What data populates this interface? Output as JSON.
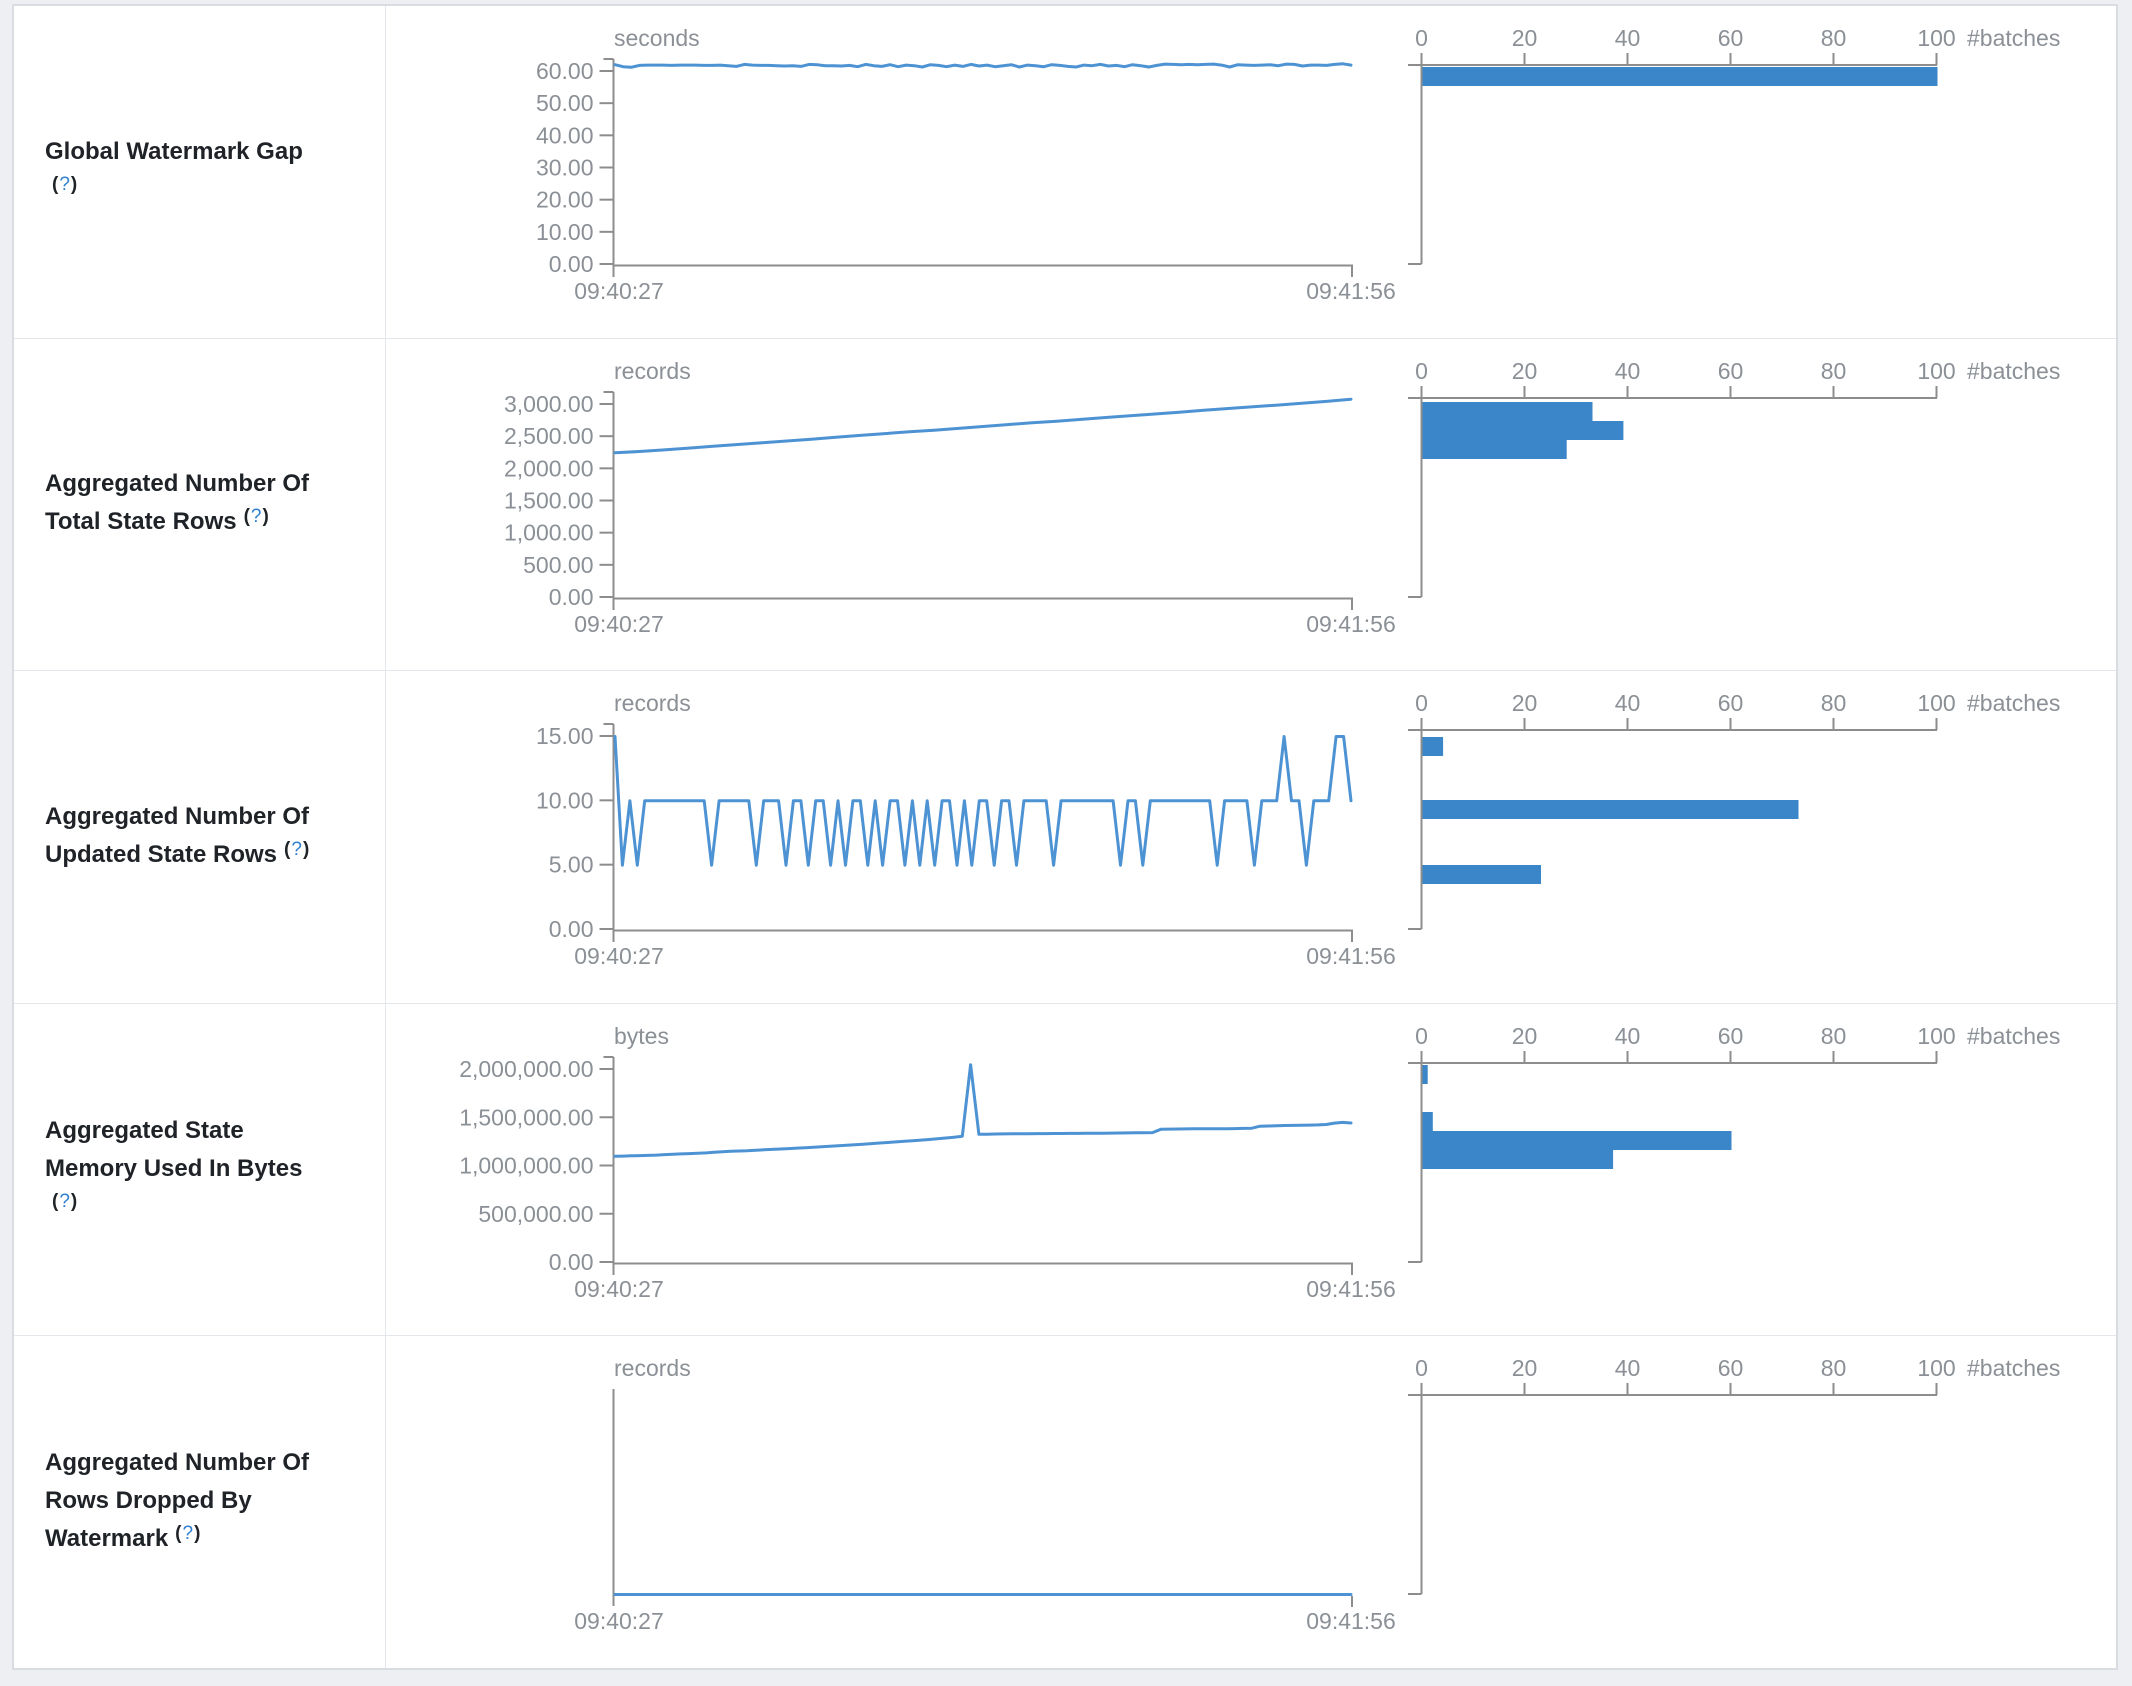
{
  "page": {
    "background": "#edeff3"
  },
  "help": {
    "open": "(",
    "q": "?",
    "close": ")"
  },
  "colors": {
    "bar_fill": "#3a86c8",
    "line_stroke": "#4d93d3",
    "axis": "#8d8d8d",
    "tick_text": "#8b9096",
    "label_text": "#1f2328",
    "help_question": "#2f7fd0",
    "row_border": "#e3e6ea",
    "outer_border": "#d9dde1"
  },
  "chart_data": [
    {
      "type": "line",
      "metric": "Global Watermark Gap",
      "unit": "seconds",
      "x": [
        "09:40:27",
        "09:41:56"
      ],
      "ylim": [
        0,
        60
      ],
      "note": "flat line slightly above 60 for all batches",
      "histogram": {
        "type": "bar",
        "xlabel": "#batches",
        "xlim": [
          0,
          100
        ],
        "counts": [
          100
        ]
      }
    },
    {
      "type": "line",
      "metric": "Aggregated Number Of Total State Rows",
      "unit": "records",
      "x": [
        "09:40:27",
        "09:41:56"
      ],
      "ylim": [
        0,
        3000
      ],
      "note": "rises ~2250 to ~3083",
      "histogram": {
        "type": "bar",
        "xlabel": "#batches",
        "xlim": [
          0,
          100
        ],
        "counts": [
          33,
          39,
          28
        ]
      }
    },
    {
      "type": "line",
      "metric": "Aggregated Number Of Updated State Rows",
      "unit": "records",
      "x": [
        "09:40:27",
        "09:41:56"
      ],
      "ylim": [
        0,
        15
      ],
      "note": "square wave between 15/10/5",
      "histogram": {
        "type": "bar",
        "xlabel": "#batches",
        "xlim": [
          0,
          100
        ],
        "counts": [
          4,
          73,
          23
        ]
      }
    },
    {
      "type": "line",
      "metric": "Aggregated State Memory Used In Bytes",
      "unit": "bytes",
      "x": [
        "09:40:27",
        "09:41:56"
      ],
      "ylim": [
        0,
        2000000
      ],
      "note": "rises ~1.1M to ~1.45M with one spike to ~2.05M",
      "histogram": {
        "type": "bar",
        "xlabel": "#batches",
        "xlim": [
          0,
          100
        ],
        "counts": [
          1,
          2,
          60,
          37
        ]
      }
    },
    {
      "type": "line",
      "metric": "Aggregated Number Of Rows Dropped By Watermark",
      "unit": "records",
      "x": [
        "09:40:27",
        "09:41:56"
      ],
      "ylim": [
        0,
        0
      ],
      "note": "flat at 0, empty histogram",
      "histogram": {
        "type": "bar",
        "xlabel": "#batches",
        "xlim": [
          0,
          100
        ],
        "counts": []
      }
    }
  ],
  "table": {
    "rows": [
      {
        "label_lines": [
          "Global Watermark Gap"
        ],
        "help_own_line": true,
        "timeline": {
          "unit": "seconds",
          "y_ticks": [
            "60.00",
            "50.00",
            "40.00",
            "30.00",
            "20.00",
            "10.00",
            "0.00"
          ],
          "y_max": 60,
          "x_start": "09:40:27",
          "x_end": "09:41:56",
          "values": [
            62.1,
            61.5,
            61.3,
            61.9,
            62.0,
            62.0,
            62.0,
            61.9,
            62.0,
            62.0,
            62.0,
            61.9,
            61.9,
            62.0,
            61.8,
            61.6,
            62.2,
            62.0,
            61.9,
            61.9,
            61.8,
            61.7,
            61.8,
            61.6,
            62.2,
            62.1,
            61.8,
            61.8,
            61.7,
            61.9,
            61.5,
            62.2,
            61.8,
            61.6,
            62.1,
            61.5,
            62.0,
            61.8,
            61.4,
            62.1,
            61.9,
            61.5,
            62.0,
            61.6,
            62.2,
            61.7,
            62.0,
            61.5,
            61.8,
            62.1,
            61.4,
            62.0,
            61.8,
            61.5,
            62.1,
            61.9,
            61.6,
            61.4,
            62.0,
            61.8,
            62.2,
            61.7,
            61.9,
            61.5,
            62.1,
            61.8,
            61.4,
            61.9,
            62.3,
            62.2,
            62.1,
            62.2,
            62.1,
            62.2,
            62.3,
            62.0,
            61.4,
            62.1,
            62.0,
            61.9,
            62.0,
            62.1,
            61.8,
            62.3,
            62.2,
            61.7,
            62.0,
            62.0,
            61.9,
            62.2,
            62.4,
            62.0
          ]
        },
        "histogram": {
          "x_ticks": [
            "0",
            "20",
            "40",
            "60",
            "80",
            "100"
          ],
          "axis_label": "#batches",
          "bars": [
            {
              "count": 100,
              "y_offset": 2
            }
          ]
        }
      },
      {
        "label_lines": [
          "Aggregated Number Of",
          "Total State Rows"
        ],
        "help_own_line": false,
        "timeline": {
          "unit": "records",
          "y_ticks": [
            "3,000.00",
            "2,500.00",
            "2,000.00",
            "1,500.00",
            "1,000.00",
            "500.00",
            "0.00"
          ],
          "y_max": 3000,
          "x_start": "09:40:27",
          "x_end": "09:41:56",
          "values": [
            2250,
            2270,
            2295,
            2322,
            2350,
            2378,
            2405,
            2432,
            2460,
            2490,
            2520,
            2548,
            2575,
            2600,
            2628,
            2658,
            2688,
            2715,
            2740,
            2768,
            2798,
            2825,
            2852,
            2880,
            2910,
            2938,
            2965,
            2990,
            3018,
            3048,
            3083
          ]
        },
        "histogram": {
          "x_ticks": [
            "0",
            "20",
            "40",
            "60",
            "80",
            "100"
          ],
          "axis_label": "#batches",
          "bars": [
            {
              "count": 33,
              "y_offset": 4
            },
            {
              "count": 39,
              "y_offset": 23
            },
            {
              "count": 28,
              "y_offset": 42
            }
          ]
        }
      },
      {
        "label_lines": [
          "Aggregated Number Of",
          "Updated State Rows"
        ],
        "help_own_line": false,
        "timeline": {
          "unit": "records",
          "y_ticks": [
            "15.00",
            "10.00",
            "5.00",
            "0.00"
          ],
          "y_max": 15,
          "x_start": "09:40:27",
          "x_end": "09:41:56",
          "values": [
            15,
            5,
            10,
            5,
            10,
            10,
            10,
            10,
            10,
            10,
            10,
            10,
            10,
            5,
            10,
            10,
            10,
            10,
            10,
            5,
            10,
            10,
            10,
            5,
            10,
            10,
            5,
            10,
            10,
            5,
            10,
            5,
            10,
            10,
            5,
            10,
            5,
            10,
            10,
            5,
            10,
            5,
            10,
            5,
            10,
            10,
            5,
            10,
            5,
            10,
            10,
            5,
            10,
            10,
            5,
            10,
            10,
            10,
            10,
            5,
            10,
            10,
            10,
            10,
            10,
            10,
            10,
            10,
            5,
            10,
            10,
            5,
            10,
            10,
            10,
            10,
            10,
            10,
            10,
            10,
            10,
            5,
            10,
            10,
            10,
            10,
            5,
            10,
            10,
            10,
            15,
            10,
            10,
            5,
            10,
            10,
            10,
            15,
            15,
            10
          ]
        },
        "histogram": {
          "x_ticks": [
            "0",
            "20",
            "40",
            "60",
            "80",
            "100"
          ],
          "axis_label": "#batches",
          "bars": [
            {
              "count": 4,
              "y_offset": 7
            },
            {
              "count": 73,
              "y_offset": 70
            },
            {
              "count": 23,
              "y_offset": 135
            }
          ]
        }
      },
      {
        "label_lines": [
          "Aggregated State",
          "Memory Used In Bytes"
        ],
        "help_own_line": true,
        "timeline": {
          "unit": "bytes",
          "y_ticks": [
            "2,000,000.00",
            "1,500,000.00",
            "1,000,000.00",
            "500,000.00",
            "0.00"
          ],
          "y_max": 2000000,
          "x_start": "09:40:27",
          "x_end": "09:41:56",
          "values": [
            1100000,
            1103000,
            1106000,
            1108000,
            1110000,
            1113000,
            1118000,
            1122000,
            1125000,
            1128000,
            1132000,
            1136000,
            1142000,
            1148000,
            1152000,
            1155000,
            1158000,
            1163000,
            1168000,
            1172000,
            1176000,
            1180000,
            1185000,
            1190000,
            1195000,
            1200000,
            1205000,
            1210000,
            1215000,
            1220000,
            1226000,
            1232000,
            1238000,
            1244000,
            1250000,
            1256000,
            1262000,
            1268000,
            1275000,
            1282000,
            1290000,
            1298000,
            1308000,
            2050000,
            1328000,
            1330000,
            1332000,
            1333000,
            1334000,
            1335000,
            1335000,
            1336000,
            1336000,
            1337000,
            1337000,
            1338000,
            1338000,
            1339000,
            1340000,
            1340000,
            1341000,
            1342000,
            1343000,
            1344000,
            1345000,
            1346000,
            1380000,
            1382000,
            1383000,
            1384000,
            1385000,
            1385000,
            1386000,
            1386000,
            1387000,
            1388000,
            1390000,
            1392000,
            1412000,
            1415000,
            1418000,
            1420000,
            1421000,
            1422000,
            1424000,
            1426000,
            1430000,
            1445000,
            1452000,
            1446000
          ]
        },
        "histogram": {
          "x_ticks": [
            "0",
            "20",
            "40",
            "60",
            "80",
            "100"
          ],
          "axis_label": "#batches",
          "bars": [
            {
              "count": 1,
              "y_offset": 2
            },
            {
              "count": 2,
              "y_offset": 49
            },
            {
              "count": 60,
              "y_offset": 68
            },
            {
              "count": 37,
              "y_offset": 87
            }
          ]
        }
      },
      {
        "label_lines": [
          "Aggregated Number Of",
          "Rows Dropped By",
          "Watermark"
        ],
        "help_own_line": false,
        "timeline": {
          "unit": "records",
          "y_ticks": [],
          "y_max": 0,
          "x_start": "09:40:27",
          "x_end": "09:41:56",
          "values": [
            0,
            0
          ]
        },
        "histogram": {
          "x_ticks": [
            "0",
            "20",
            "40",
            "60",
            "80",
            "100"
          ],
          "axis_label": "#batches",
          "bars": []
        }
      }
    ]
  }
}
